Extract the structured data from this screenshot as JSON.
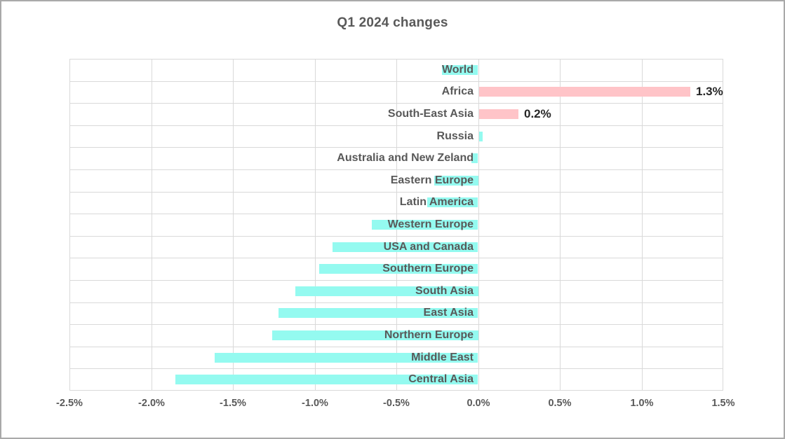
{
  "title": "Q1 2024 changes",
  "colors": {
    "bar_cyan": "#94faf0",
    "bar_pink": "#ffc4c8",
    "gridline": "#d9d9d9",
    "title_text": "#595959",
    "category_text": "#595959",
    "data_label_text": "#262626",
    "canvas_border": "#a9a9a9"
  },
  "chart_data": {
    "type": "bar",
    "orientation": "horizontal",
    "title": "Q1 2024 changes",
    "categories": [
      "World",
      "Africa",
      "South-East Asia",
      "Russia",
      "Australia and New Zeland",
      "Eastern Europe",
      "Latin America",
      "Western Europe",
      "USA and Canada",
      "Southern Europe",
      "South Asia",
      "East Asia",
      "Northern Europe",
      "Middle East",
      "Central Asia"
    ],
    "values": [
      -0.22,
      1.29,
      0.24,
      0.02,
      -0.04,
      -0.27,
      -0.31,
      -0.65,
      -0.89,
      -0.97,
      -1.12,
      -1.22,
      -1.26,
      -1.61,
      -1.85
    ],
    "bar_colors": [
      "cyan",
      "pink",
      "pink",
      "cyan",
      "cyan",
      "cyan",
      "cyan",
      "cyan",
      "cyan",
      "cyan",
      "cyan",
      "cyan",
      "cyan",
      "cyan",
      "cyan"
    ],
    "data_labels": [
      "",
      "1.3%",
      "0.2%",
      "",
      "",
      "",
      "",
      "",
      "",
      "",
      "",
      "",
      "",
      "",
      ""
    ],
    "x_tick_labels": [
      "-2.5%",
      "-2.0%",
      "-1.5%",
      "-1.0%",
      "-0.5%",
      "0.0%",
      "0.5%",
      "1.0%",
      "1.5%"
    ],
    "x_ticks": [
      -2.5,
      -2.0,
      -1.5,
      -1.0,
      -0.5,
      0.0,
      0.5,
      1.0,
      1.5
    ],
    "xlim": [
      -2.5,
      1.5
    ],
    "grid": true,
    "legend": false
  }
}
